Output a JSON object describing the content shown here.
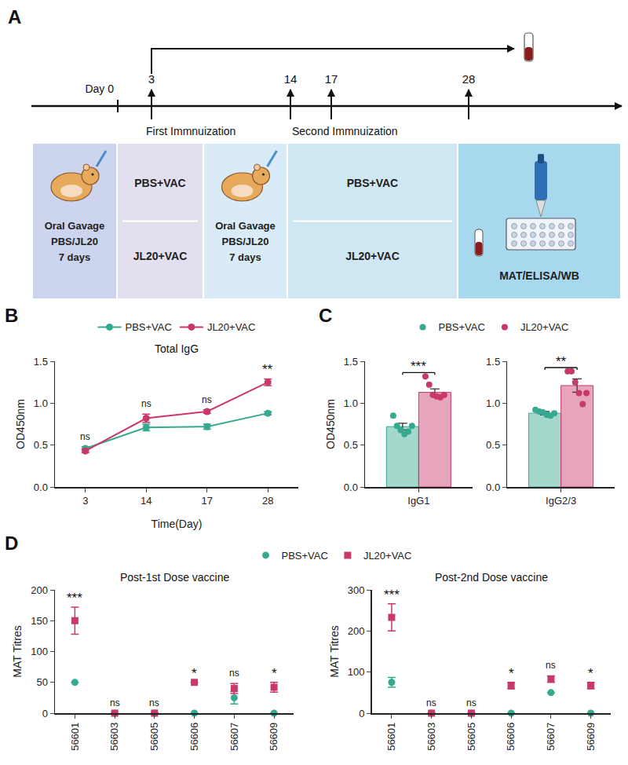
{
  "diagram": {
    "panel": "A",
    "timeline": {
      "start_label": "Day 0",
      "days": [
        "3",
        "14",
        "17",
        "28"
      ]
    },
    "events": [
      "First Immnuization",
      "Second Immnuization"
    ],
    "boxes": [
      {
        "text": [
          "Oral Gavage",
          "PBS/JL20",
          "7 days"
        ]
      },
      {
        "rows": [
          "PBS+VAC",
          "JL20+VAC"
        ]
      },
      {
        "text": [
          "Oral Gavage",
          "PBS/JL20",
          "7 days"
        ]
      },
      {
        "rows": [
          "PBS+VAC",
          "JL20+VAC"
        ]
      },
      {
        "text": [
          "MAT/ELISA/WB"
        ]
      }
    ]
  },
  "chart_data": [
    {
      "panel": "B",
      "type": "line",
      "title": "Total IgG",
      "x_label": "Time(Day)",
      "y_label": "OD450nm",
      "categories": [
        "3",
        "14",
        "17",
        "28"
      ],
      "series": [
        {
          "name": "PBS+VAC",
          "color": "#36a990",
          "marker": "circle",
          "line_style": "solid",
          "values": [
            0.46,
            0.71,
            0.72,
            0.88
          ],
          "errors": [
            0.02,
            0.04,
            0.03,
            0.02
          ]
        },
        {
          "name": "JL20+VAC",
          "color": "#c8386b",
          "marker": "circle",
          "line_style": "solid",
          "values": [
            0.43,
            0.82,
            0.9,
            1.25
          ],
          "errors": [
            0.02,
            0.05,
            0.02,
            0.04
          ]
        }
      ],
      "significance": [
        "ns",
        "ns",
        "ns",
        "**"
      ],
      "ylim": [
        0,
        1.5
      ],
      "yticks": [
        {
          "value": 0,
          "label": "0.0"
        },
        0.5,
        {
          "value": 1,
          "label": "1.0"
        },
        1.5
      ],
      "legend": "top"
    },
    {
      "panel": "C",
      "type": "bar",
      "y_label": "OD450nm",
      "categories": [
        "IgG1"
      ],
      "series": [
        {
          "name": "PBS+VAC",
          "color": "#36a990",
          "marker": "circle",
          "values": [
            0.72
          ],
          "errors": [
            0.04
          ],
          "points": [
            [
              0.85,
              0.73,
              0.68,
              0.63,
              0.66,
              0.73
            ]
          ]
        },
        {
          "name": "JL20+VAC",
          "color": "#c8386b",
          "marker": "circle",
          "values": [
            1.13
          ],
          "errors": [
            0.04
          ],
          "points": [
            [
              1.32,
              1.22,
              1.1,
              1.08,
              1.07,
              1.1
            ]
          ]
        }
      ],
      "significance": [
        "***"
      ],
      "ylim": [
        0,
        1.5
      ],
      "yticks": [
        {
          "value": 0,
          "label": "0.0"
        },
        0.5,
        {
          "value": 1,
          "label": "1.0"
        },
        1.5
      ],
      "legend": "top"
    },
    {
      "panel": "C",
      "type": "bar",
      "categories": [
        "IgG2/3"
      ],
      "series": [
        {
          "name": "PBS+VAC",
          "color": "#36a990",
          "marker": "circle",
          "values": [
            0.88
          ],
          "errors": [
            0.02
          ],
          "points": [
            [
              0.92,
              0.9,
              0.89,
              0.86,
              0.85,
              0.88
            ]
          ]
        },
        {
          "name": "JL20+VAC",
          "color": "#c8386b",
          "marker": "circle",
          "values": [
            1.21
          ],
          "errors": [
            0.08
          ],
          "points": [
            [
              1.38,
              1.38,
              1.25,
              1.12,
              0.99,
              1.12
            ]
          ]
        }
      ],
      "significance": [
        "**"
      ],
      "ylim": [
        0,
        1.5
      ],
      "yticks": [
        {
          "value": 0,
          "label": "0.0"
        },
        0.5,
        {
          "value": 1,
          "label": "1.0"
        },
        1.5
      ]
    },
    {
      "panel": "D",
      "type": "scatter",
      "title": "Post-1st Dose vaccine",
      "y_label": "MAT Titres",
      "categories": [
        "56601",
        "56603",
        "56605",
        "56606",
        "56607",
        "56609"
      ],
      "series": [
        {
          "name": "PBS+VAC",
          "color": "#36a990",
          "marker": "circle",
          "values": [
            50,
            0,
            0,
            0,
            25,
            0
          ],
          "errors": [
            0,
            0,
            0,
            0,
            10,
            0
          ]
        },
        {
          "name": "JL20+VAC",
          "color": "#c8386b",
          "marker": "square",
          "values": [
            150,
            0,
            0,
            50,
            40,
            42
          ],
          "errors": [
            22,
            0,
            0,
            0,
            8,
            8
          ]
        }
      ],
      "significance": [
        "***",
        "ns",
        "ns",
        "*",
        "ns",
        "*"
      ],
      "ylim": [
        0,
        200
      ],
      "yticks": [
        0,
        50,
        100,
        150,
        200
      ],
      "legend": "top"
    },
    {
      "panel": "D",
      "type": "scatter",
      "title": "Post-2nd Dose vaccine",
      "y_label": "MAT Titres",
      "categories": [
        "56601",
        "56603",
        "56605",
        "56606",
        "56607",
        "56609"
      ],
      "series": [
        {
          "name": "PBS+VAC",
          "color": "#36a990",
          "marker": "circle",
          "values": [
            75,
            0,
            0,
            0,
            50,
            0
          ],
          "errors": [
            12,
            0,
            0,
            0,
            0,
            0
          ]
        },
        {
          "name": "JL20+VAC",
          "color": "#c8386b",
          "marker": "square",
          "values": [
            233,
            0,
            0,
            67,
            83,
            67
          ],
          "errors": [
            33,
            0,
            0,
            8,
            8,
            8
          ]
        }
      ],
      "significance": [
        "***",
        "ns",
        "ns",
        "*",
        "ns",
        "*"
      ],
      "ylim": [
        0,
        300
      ],
      "yticks": [
        0,
        100,
        200,
        300
      ]
    }
  ]
}
